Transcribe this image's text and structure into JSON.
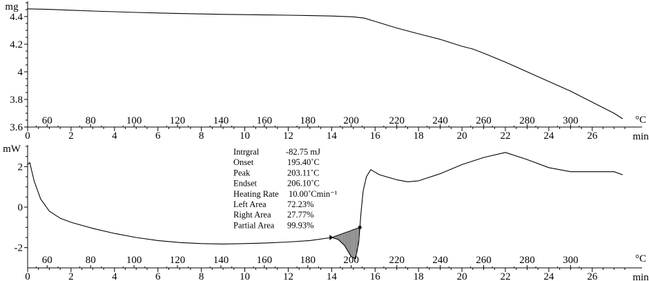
{
  "chart_data": [
    {
      "type": "line",
      "panel": "TGA",
      "ylabel": "mg",
      "ylim": [
        3.6,
        4.5
      ],
      "yticks": [
        3.6,
        3.8,
        4.0,
        4.2,
        4.4
      ],
      "xlabel": "min",
      "xlim": [
        0,
        27.5
      ],
      "xticks": [
        0,
        2,
        4,
        6,
        8,
        10,
        12,
        14,
        16,
        18,
        20,
        22,
        24,
        26
      ],
      "temp_unit": "°C",
      "temp_ticks": [
        60,
        80,
        100,
        120,
        140,
        160,
        180,
        200,
        220,
        240,
        260,
        280,
        300
      ],
      "temp_tick_times": [
        0.9,
        2.9,
        4.9,
        6.9,
        8.9,
        10.9,
        12.9,
        14.9,
        17.0,
        19.0,
        21.0,
        23.0,
        25.0
      ],
      "series": [
        {
          "x": [
            0,
            1,
            2,
            3,
            4,
            5,
            6,
            7,
            8,
            9,
            10,
            11,
            12,
            13,
            14,
            15,
            15.5,
            16,
            17,
            18,
            19,
            20,
            20.5,
            21,
            22,
            23,
            24,
            25,
            26,
            27,
            27.4
          ],
          "y": [
            4.456,
            4.452,
            4.446,
            4.44,
            4.435,
            4.43,
            4.426,
            4.422,
            4.419,
            4.416,
            4.414,
            4.412,
            4.41,
            4.407,
            4.404,
            4.398,
            4.389,
            4.365,
            4.317,
            4.275,
            4.235,
            4.185,
            4.165,
            4.135,
            4.07,
            4.0,
            3.93,
            3.86,
            3.78,
            3.7,
            3.66
          ]
        }
      ]
    },
    {
      "type": "line",
      "panel": "DSC",
      "ylabel": "mW",
      "ylim": [
        -3,
        3
      ],
      "yticks": [
        -2,
        0,
        2
      ],
      "xlabel": "min",
      "xlim": [
        0,
        27.5
      ],
      "xticks": [
        0,
        2,
        4,
        6,
        8,
        10,
        12,
        14,
        16,
        18,
        20,
        22,
        24,
        26
      ],
      "temp_unit": "°C",
      "temp_ticks": [
        60,
        80,
        100,
        120,
        140,
        160,
        180,
        200,
        220,
        240,
        260,
        280,
        300
      ],
      "temp_tick_times": [
        0.9,
        2.9,
        4.9,
        6.9,
        8.9,
        10.9,
        12.9,
        14.9,
        17.0,
        19.0,
        21.0,
        23.0,
        25.0
      ],
      "series": [
        {
          "x": [
            0,
            0.1,
            0.3,
            0.6,
            1.0,
            1.5,
            2,
            3,
            4,
            5,
            6,
            7,
            8,
            9,
            10,
            11,
            12,
            13,
            14,
            14.3,
            14.6,
            14.9,
            15.1,
            15.25,
            15.35,
            15.45,
            15.6,
            15.8,
            16.2,
            17,
            17.5,
            18,
            19,
            20,
            21,
            22,
            23,
            24,
            25,
            26,
            27,
            27.4
          ],
          "y": [
            2.1,
            2.2,
            1.3,
            0.4,
            -0.2,
            -0.55,
            -0.75,
            -1.05,
            -1.3,
            -1.5,
            -1.65,
            -1.75,
            -1.8,
            -1.82,
            -1.8,
            -1.77,
            -1.72,
            -1.65,
            -1.5,
            -1.6,
            -1.9,
            -2.45,
            -2.55,
            -1.7,
            -0.3,
            0.8,
            1.5,
            1.85,
            1.6,
            1.35,
            1.25,
            1.3,
            1.65,
            2.1,
            2.45,
            2.7,
            2.35,
            1.95,
            1.75,
            1.75,
            1.75,
            1.6
          ]
        }
      ],
      "peak": {
        "start_time": 14.0,
        "end_time": 15.3
      }
    }
  ],
  "annotation": {
    "labels": [
      "Intrgral",
      "Onset",
      "Peak",
      "Endset",
      "Heating Rate",
      "Left Area",
      "Right Area",
      "Partial Area"
    ],
    "values": [
      "-82.75 mJ",
      "195.40˚C",
      "203.11˚C",
      "206.10˚C",
      "10.00˚Cmin⁻¹",
      "72.23%",
      "27.77%",
      "99.93%"
    ]
  }
}
